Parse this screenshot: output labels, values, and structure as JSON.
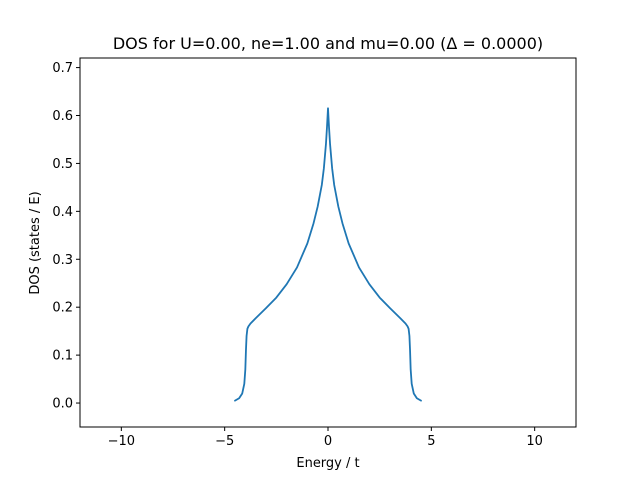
{
  "chart_data": {
    "type": "line",
    "title": "DOS for U=0.00, ne=1.00 and mu=0.00 (Δ = 0.0000)",
    "xlabel": "Energy / t",
    "ylabel": "DOS (states / E)",
    "xlim": [
      -12,
      12
    ],
    "ylim": [
      -0.05,
      0.72
    ],
    "xticks": [
      -10,
      -5,
      0,
      5,
      10
    ],
    "xtick_labels": [
      "−10",
      "−5",
      "0",
      "5",
      "10"
    ],
    "yticks": [
      0.0,
      0.1,
      0.2,
      0.3,
      0.4,
      0.5,
      0.6,
      0.7
    ],
    "ytick_labels": [
      "0.0",
      "0.1",
      "0.2",
      "0.3",
      "0.4",
      "0.5",
      "0.6",
      "0.7"
    ],
    "grid": false,
    "series": [
      {
        "color": "#1f77b4",
        "x": [
          -4.5,
          -4.3,
          -4.15,
          -4.05,
          -4.0,
          -3.97,
          -3.94,
          -3.9,
          -3.85,
          -3.75,
          -3.5,
          -3.0,
          -2.5,
          -2.0,
          -1.5,
          -1.0,
          -0.7,
          -0.5,
          -0.3,
          -0.2,
          -0.1,
          -0.05,
          0.0,
          0.05,
          0.1,
          0.2,
          0.3,
          0.5,
          0.7,
          1.0,
          1.5,
          2.0,
          2.5,
          3.0,
          3.5,
          3.75,
          3.85,
          3.9,
          3.94,
          3.97,
          4.0,
          4.05,
          4.15,
          4.3,
          4.5
        ],
        "y": [
          0.005,
          0.01,
          0.02,
          0.04,
          0.07,
          0.11,
          0.14,
          0.155,
          0.16,
          0.166,
          0.177,
          0.198,
          0.22,
          0.248,
          0.283,
          0.333,
          0.375,
          0.41,
          0.455,
          0.49,
          0.54,
          0.575,
          0.615,
          0.575,
          0.54,
          0.49,
          0.455,
          0.41,
          0.375,
          0.333,
          0.283,
          0.248,
          0.22,
          0.198,
          0.177,
          0.166,
          0.16,
          0.155,
          0.14,
          0.11,
          0.07,
          0.04,
          0.02,
          0.01,
          0.005
        ]
      }
    ]
  }
}
